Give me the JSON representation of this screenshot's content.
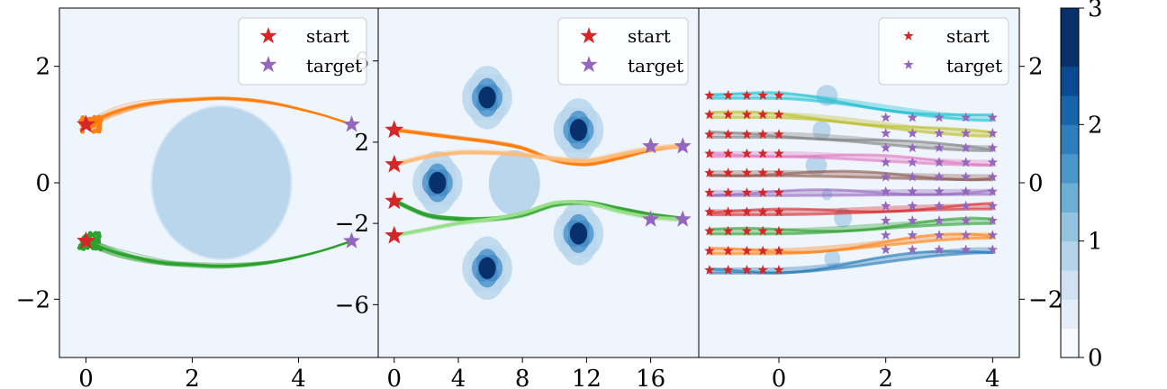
{
  "legend": {
    "start_label": "start",
    "target_label": "target"
  },
  "colors": {
    "background": "#eef5fc",
    "start": "#d62728",
    "target": "#9467bd",
    "orange": "#ff7f0e",
    "light_orange": "#ffbb78",
    "green": "#2ca02c",
    "light_green": "#98df8a",
    "obstacle_light": "#b9d6ec",
    "obstacle_mid": "#3a87c4",
    "obstacle_dark": "#08306b"
  },
  "chart_data": [
    {
      "type": "line",
      "panel": "left",
      "xlim": [
        -0.5,
        5.5
      ],
      "ylim": [
        -3,
        3
      ],
      "xticks": [
        0,
        2,
        4
      ],
      "yticks": [
        -2,
        0,
        2
      ],
      "xtick_labels": [
        "0",
        "2",
        "4"
      ],
      "ytick_labels": [
        "−2",
        "0",
        "2"
      ],
      "obstacles": [
        {
          "cx": 2.55,
          "cy": 0,
          "r": 1.3
        }
      ],
      "starts": [
        {
          "x": 0,
          "y": 1
        },
        {
          "x": 0,
          "y": -1
        }
      ],
      "targets": [
        {
          "x": 5,
          "y": 1
        },
        {
          "x": 5,
          "y": -1
        }
      ],
      "series": [
        {
          "color": "orange",
          "x": [
            0,
            0.5,
            1,
            1.5,
            2,
            2.5,
            3,
            3.5,
            4,
            4.5,
            5
          ],
          "y": [
            1.0,
            1.2,
            1.33,
            1.4,
            1.43,
            1.45,
            1.43,
            1.37,
            1.27,
            1.15,
            1.0
          ]
        },
        {
          "color": "green",
          "x": [
            0,
            0.5,
            1,
            1.5,
            2,
            2.5,
            3,
            3.5,
            4,
            4.5,
            5
          ],
          "y": [
            -1.0,
            -1.18,
            -1.3,
            -1.38,
            -1.41,
            -1.43,
            -1.41,
            -1.36,
            -1.27,
            -1.15,
            -1.0
          ]
        }
      ]
    },
    {
      "type": "line",
      "panel": "middle",
      "xlim": [
        -1,
        19
      ],
      "ylim": [
        -8.6,
        8.6
      ],
      "xticks": [
        0,
        4,
        8,
        12,
        16
      ],
      "yticks": [
        -6,
        -2,
        2,
        6
      ],
      "xtick_labels": [
        "0",
        "4",
        "8",
        "12",
        "16"
      ],
      "ytick_labels": [
        "−6",
        "−2",
        "2",
        "6"
      ],
      "obstacles": [
        {
          "cx": 7.5,
          "cy": 0,
          "r": 1.6,
          "cluster": false
        },
        {
          "cx": 2.7,
          "cy": 0,
          "r": 1.2,
          "cluster": true
        },
        {
          "cx": 5.8,
          "cy": 4.2,
          "r": 1.2,
          "cluster": true
        },
        {
          "cx": 11.5,
          "cy": 2.6,
          "r": 1.2,
          "cluster": true
        },
        {
          "cx": 11.5,
          "cy": -2.5,
          "r": 1.2,
          "cluster": true
        },
        {
          "cx": 5.8,
          "cy": -4.2,
          "r": 1.2,
          "cluster": true
        }
      ],
      "starts": [
        {
          "x": 0,
          "y": 2.6
        },
        {
          "x": 0,
          "y": 0.9
        },
        {
          "x": 0,
          "y": -0.9
        },
        {
          "x": 0,
          "y": -2.6
        }
      ],
      "targets": [
        {
          "x": 16,
          "y": 1.8
        },
        {
          "x": 18,
          "y": 1.8
        },
        {
          "x": 16,
          "y": -1.8
        },
        {
          "x": 18,
          "y": -1.8
        }
      ],
      "series": [
        {
          "color": "orange",
          "x": [
            0,
            2,
            4,
            6,
            8,
            10,
            12,
            14,
            16,
            18
          ],
          "y": [
            2.6,
            2.4,
            2.2,
            2.0,
            1.7,
            1.1,
            0.9,
            1.2,
            1.6,
            1.8
          ]
        },
        {
          "color": "light_orange",
          "x": [
            0,
            2,
            4,
            6,
            8,
            10,
            12,
            14,
            16,
            18
          ],
          "y": [
            0.9,
            1.3,
            1.5,
            1.5,
            1.4,
            1.2,
            1.1,
            1.4,
            1.7,
            1.8
          ]
        },
        {
          "color": "green",
          "x": [
            0,
            2,
            4,
            6,
            8,
            10,
            12,
            14,
            16,
            18
          ],
          "y": [
            -0.9,
            -1.6,
            -1.8,
            -1.8,
            -1.6,
            -1.1,
            -1.0,
            -1.3,
            -1.6,
            -1.8
          ]
        },
        {
          "color": "light_green",
          "x": [
            0,
            2,
            4,
            6,
            8,
            10,
            12,
            14,
            16,
            18
          ],
          "y": [
            -2.6,
            -2.3,
            -2.0,
            -1.8,
            -1.5,
            -1.0,
            -1.0,
            -1.4,
            -1.7,
            -1.8
          ]
        }
      ]
    },
    {
      "type": "line",
      "panel": "right",
      "xlim": [
        -1.5,
        4.5
      ],
      "ylim": [
        -3,
        3
      ],
      "xticks": [
        0,
        2,
        4
      ],
      "yticks": [
        -2,
        0,
        2
      ],
      "xtick_labels": [
        "0",
        "2",
        "4"
      ],
      "ytick_labels": [
        "−2",
        "0",
        "2"
      ],
      "obstacles": [
        {
          "cx": 0.9,
          "cy": 1.5,
          "rx": 0.2,
          "ry": 0.18,
          "v": 0.9
        },
        {
          "cx": 0.8,
          "cy": 0.9,
          "rx": 0.17,
          "ry": 0.17,
          "v": 0.9
        },
        {
          "cx": 0.7,
          "cy": 0.3,
          "rx": 0.2,
          "ry": 0.18,
          "v": 0.9
        },
        {
          "cx": 0.9,
          "cy": -0.2,
          "rx": 0.1,
          "ry": 0.1,
          "v": 0.9
        },
        {
          "cx": 1.2,
          "cy": -0.6,
          "rx": 0.17,
          "ry": 0.17,
          "v": 0.9
        },
        {
          "cx": 1.0,
          "cy": -1.3,
          "rx": 0.15,
          "ry": 0.15,
          "v": 0.9
        }
      ],
      "starts_x": [
        -1.3,
        -0.95,
        -0.6,
        -0.3,
        0
      ],
      "starts_y": [
        1.5,
        1.17,
        0.83,
        0.5,
        0.17,
        -0.17,
        -0.5,
        -0.83,
        -1.17,
        -1.5
      ],
      "targets_x": [
        2,
        2.5,
        3,
        3.5,
        4
      ],
      "targets_y": [
        1.12,
        0.85,
        0.6,
        0.35,
        0.1,
        -0.15,
        -0.4,
        -0.65,
        -0.9,
        -1.15
      ],
      "series_colors": [
        "#17becf",
        "#bcbd22",
        "#7f7f7f",
        "#e377c2",
        "#8c564b",
        "#9467bd",
        "#d62728",
        "#2ca02c",
        "#ff7f0e",
        "#1f77b4"
      ]
    }
  ],
  "colorbar": {
    "vmin": 0,
    "vmax": 3,
    "levels": 12,
    "tick_values": [
      0,
      1,
      2,
      3
    ],
    "tick_labels": [
      "0",
      "1",
      "2",
      "3"
    ],
    "colors": [
      "#f7fbff",
      "#e3eef9",
      "#cfe1f2",
      "#b5d4e9",
      "#93c3df",
      "#6daed5",
      "#4b97c9",
      "#2f7ebc",
      "#1864aa",
      "#0a4a90",
      "#08306b",
      "#08306b"
    ]
  }
}
